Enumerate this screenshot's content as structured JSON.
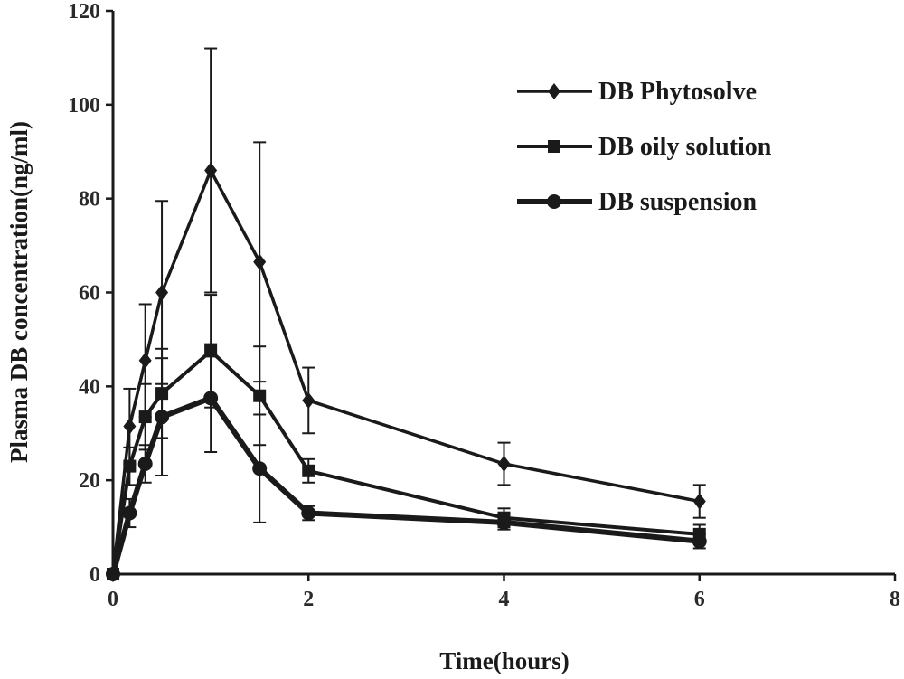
{
  "chart_data": {
    "type": "line",
    "xlabel": "Time(hours)",
    "ylabel": "Plasma DB concentration(ng/ml)",
    "xlim": [
      0,
      8
    ],
    "ylim": [
      0,
      120
    ],
    "xticks": [
      "0",
      "2",
      "4",
      "6",
      "8"
    ],
    "yticks": [
      "0",
      "20",
      "40",
      "60",
      "80",
      "100",
      "120"
    ],
    "grid": false,
    "legend_position": "top-right",
    "series": [
      {
        "name": "DB Phytosolve",
        "marker": "diamond",
        "x": [
          0,
          0.17,
          0.33,
          0.5,
          1,
          1.5,
          2,
          4,
          6
        ],
        "y": [
          0,
          31.5,
          45.5,
          60,
          86,
          66.5,
          37,
          23.5,
          15.5
        ],
        "err": [
          0,
          8,
          12,
          19.5,
          26,
          25.5,
          7,
          4.5,
          3.5
        ]
      },
      {
        "name": "DB oily solution",
        "marker": "square",
        "x": [
          0,
          0.17,
          0.33,
          0.5,
          1,
          1.5,
          2,
          4,
          6
        ],
        "y": [
          0,
          23,
          33.5,
          38.5,
          47.5,
          38,
          22,
          12,
          8.5
        ],
        "err": [
          0,
          4,
          7,
          9.5,
          12,
          10.5,
          2.5,
          2,
          2
        ]
      },
      {
        "name": "DB suspension",
        "marker": "circle",
        "x": [
          0,
          0.17,
          0.33,
          0.5,
          1,
          1.5,
          2,
          4,
          6
        ],
        "y": [
          0,
          13,
          23.5,
          33.5,
          37.5,
          22.5,
          13,
          11,
          7
        ],
        "err": [
          0,
          3,
          4,
          12.5,
          11.5,
          11.5,
          1.5,
          1.5,
          1.5
        ]
      }
    ]
  }
}
